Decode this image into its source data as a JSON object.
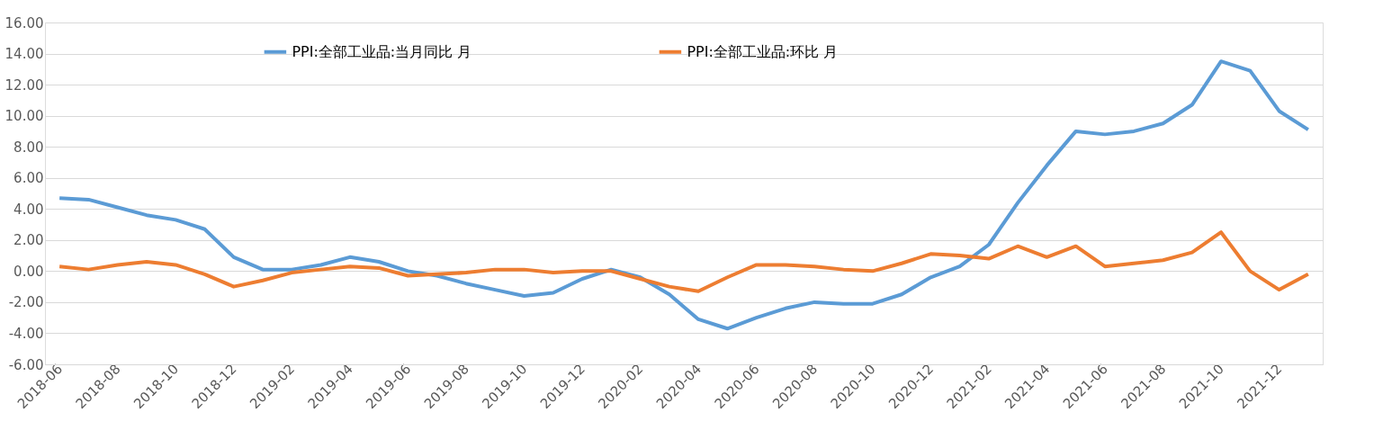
{
  "chart_data": {
    "type": "line",
    "categories": [
      "2018-06",
      null,
      "2018-08",
      null,
      "2018-10",
      null,
      "2018-12",
      null,
      "2019-02",
      null,
      "2019-04",
      null,
      "2019-06",
      null,
      "2019-08",
      null,
      "2019-10",
      null,
      "2019-12",
      null,
      "2020-02",
      null,
      "2020-04",
      null,
      "2020-06",
      null,
      "2020-08",
      null,
      "2020-10",
      null,
      "2020-12",
      null,
      "2021-02",
      null,
      "2021-04",
      null,
      "2021-06",
      null,
      "2021-08",
      null,
      "2021-10",
      null,
      "2021-12",
      null
    ],
    "series": [
      {
        "name": "PPI:全部工业品:当月同比 月",
        "color": "#5b9bd5",
        "values": [
          4.7,
          4.6,
          4.1,
          3.6,
          3.3,
          2.7,
          0.9,
          0.1,
          0.1,
          0.4,
          0.9,
          0.6,
          0.0,
          -0.3,
          -0.8,
          -1.2,
          -1.6,
          -1.4,
          -0.5,
          0.1,
          -0.4,
          -1.5,
          -3.1,
          -3.7,
          -3.0,
          -2.4,
          -2.0,
          -2.1,
          -2.1,
          -1.5,
          -0.4,
          0.3,
          1.7,
          4.4,
          6.8,
          9.0,
          8.8,
          9.0,
          9.5,
          10.7,
          13.5,
          12.9,
          10.3,
          9.1
        ]
      },
      {
        "name": "PPI:全部工业品:环比 月",
        "color": "#ed7d31",
        "values": [
          0.3,
          0.1,
          0.4,
          0.6,
          0.4,
          -0.2,
          -1.0,
          -0.6,
          -0.1,
          0.1,
          0.3,
          0.2,
          -0.3,
          -0.2,
          -0.1,
          0.1,
          0.1,
          -0.1,
          0.0,
          0.0,
          -0.5,
          -1.0,
          -1.3,
          -0.4,
          0.4,
          0.4,
          0.3,
          0.1,
          0.0,
          0.5,
          1.1,
          1.0,
          0.8,
          1.6,
          0.9,
          1.6,
          0.3,
          0.5,
          0.7,
          1.2,
          2.5,
          0.0,
          -1.2,
          -0.2
        ]
      }
    ],
    "ylim": [
      -6,
      16
    ],
    "yticks": [
      {
        "value": -6,
        "label": "-6.00"
      },
      {
        "value": -4,
        "label": "-4.00"
      },
      {
        "value": -2,
        "label": "-2.00"
      },
      {
        "value": 0,
        "label": "0.00"
      },
      {
        "value": 2,
        "label": "2.00"
      },
      {
        "value": 4,
        "label": "4.00"
      },
      {
        "value": 6,
        "label": "6.00"
      },
      {
        "value": 8,
        "label": "8.00"
      },
      {
        "value": 10,
        "label": "10.00"
      },
      {
        "value": 12,
        "label": "12.00"
      },
      {
        "value": 14,
        "label": "14.00"
      },
      {
        "value": 16,
        "label": "16.00"
      }
    ],
    "grid": "y",
    "legend": "top",
    "marker": "none",
    "line_style": "solid"
  }
}
